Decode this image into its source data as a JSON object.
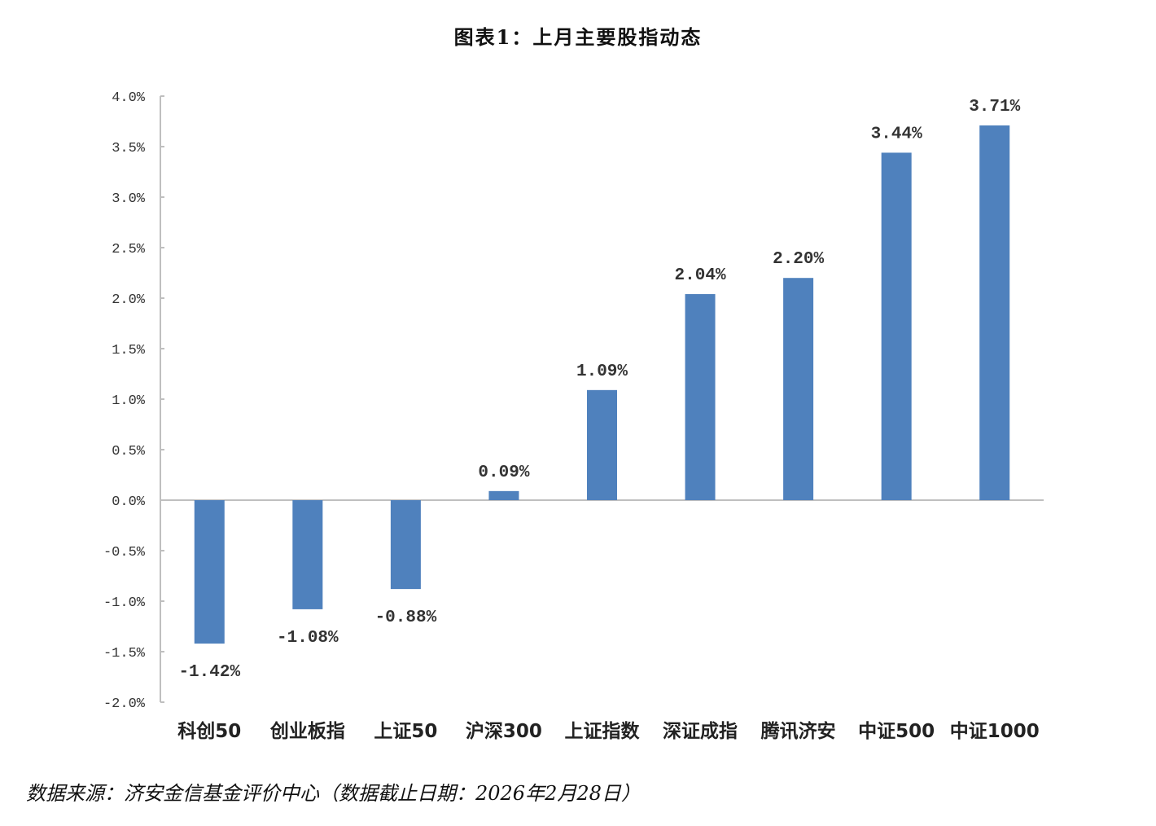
{
  "title": "图表1：上月主要股指动态",
  "source": "数据来源：济安金信基金评价中心（数据截止日期：2026年2月28日）",
  "colors": {
    "bar": "#4f81bd",
    "axis": "#bfbfbf"
  },
  "chart_data": {
    "type": "bar",
    "title": "图表1：上月主要股指动态",
    "xlabel": "",
    "ylabel": "",
    "categories": [
      "科创50",
      "创业板指",
      "上证50",
      "沪深300",
      "上证指数",
      "深证成指",
      "腾讯济安",
      "中证500",
      "中证1000"
    ],
    "values": [
      -1.42,
      -1.08,
      -0.88,
      0.09,
      1.09,
      2.04,
      2.2,
      3.44,
      3.71
    ],
    "value_labels": [
      "-1.42%",
      "-1.08%",
      "-0.88%",
      "0.09%",
      "1.09%",
      "2.04%",
      "2.20%",
      "3.44%",
      "3.71%"
    ],
    "unit": "%",
    "ylim": [
      -2.0,
      4.0
    ],
    "yticks": [
      4.0,
      3.5,
      3.0,
      2.5,
      2.0,
      1.5,
      1.0,
      0.5,
      0.0,
      -0.5,
      -1.0,
      -1.5,
      -2.0
    ],
    "ytick_labels": [
      "4.0%",
      "3.5%",
      "3.0%",
      "2.5%",
      "2.0%",
      "1.5%",
      "1.0%",
      "0.5%",
      "0.0%",
      "-0.5%",
      "-1.0%",
      "-1.5%",
      "-2.0%"
    ],
    "grid": false,
    "legend": null
  }
}
